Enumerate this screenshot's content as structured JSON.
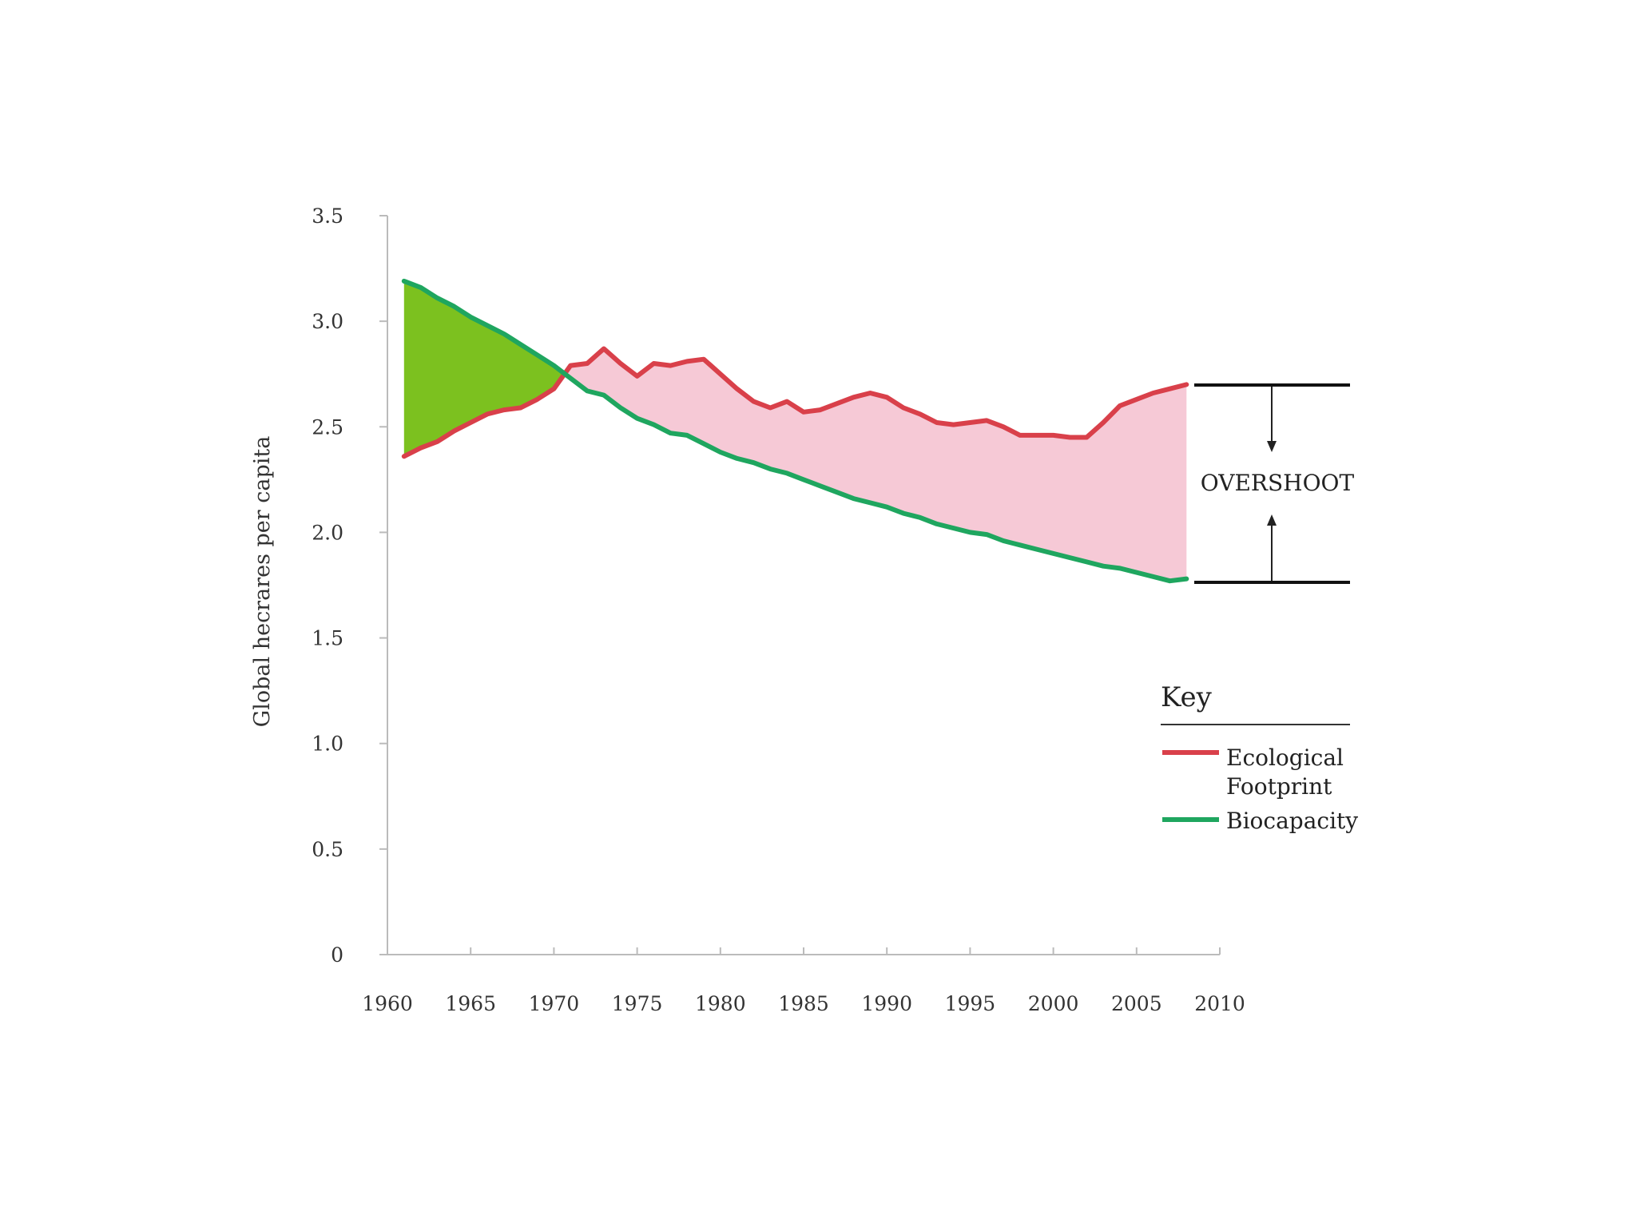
{
  "chart_data": {
    "type": "line",
    "title": "",
    "xlabel": "",
    "ylabel": "Global hecrares per capita",
    "xlim": [
      1960,
      2010
    ],
    "ylim": [
      0,
      3.5
    ],
    "x_ticks": [
      "1960",
      "1965",
      "1970",
      "1975",
      "1980",
      "1985",
      "1990",
      "1995",
      "2000",
      "2005",
      "2010"
    ],
    "y_ticks": [
      "0",
      "0.5",
      "1.0",
      "1.5",
      "2.0",
      "2.5",
      "3.0",
      "3.5"
    ],
    "grid": false,
    "x": [
      1961,
      1962,
      1963,
      1964,
      1965,
      1966,
      1967,
      1968,
      1969,
      1970,
      1971,
      1972,
      1973,
      1974,
      1975,
      1976,
      1977,
      1978,
      1979,
      1980,
      1981,
      1982,
      1983,
      1984,
      1985,
      1986,
      1987,
      1988,
      1989,
      1990,
      1991,
      1992,
      1993,
      1994,
      1995,
      1996,
      1997,
      1998,
      1999,
      2000,
      2001,
      2002,
      2003,
      2004,
      2005,
      2006,
      2007,
      2008
    ],
    "series": [
      {
        "name": "Ecological Footprint",
        "color": "#d9404a",
        "values": [
          2.36,
          2.4,
          2.43,
          2.48,
          2.52,
          2.56,
          2.58,
          2.59,
          2.63,
          2.68,
          2.79,
          2.8,
          2.87,
          2.8,
          2.74,
          2.8,
          2.79,
          2.81,
          2.82,
          2.75,
          2.68,
          2.62,
          2.59,
          2.62,
          2.57,
          2.58,
          2.61,
          2.64,
          2.66,
          2.64,
          2.59,
          2.56,
          2.52,
          2.51,
          2.52,
          2.53,
          2.5,
          2.46,
          2.46,
          2.46,
          2.45,
          2.45,
          2.52,
          2.6,
          2.63,
          2.66,
          2.68,
          2.7
        ]
      },
      {
        "name": "Biocapacity",
        "color": "#1fa65f",
        "values": [
          3.19,
          3.16,
          3.11,
          3.07,
          3.02,
          2.98,
          2.94,
          2.89,
          2.84,
          2.79,
          2.73,
          2.67,
          2.65,
          2.59,
          2.54,
          2.51,
          2.47,
          2.46,
          2.42,
          2.38,
          2.35,
          2.33,
          2.3,
          2.28,
          2.25,
          2.22,
          2.19,
          2.16,
          2.14,
          2.12,
          2.09,
          2.07,
          2.04,
          2.02,
          2.0,
          1.99,
          1.96,
          1.94,
          1.92,
          1.9,
          1.88,
          1.86,
          1.84,
          1.83,
          1.81,
          1.79,
          1.77,
          1.78
        ]
      }
    ],
    "fill_colors": {
      "surplus": "#7cc11f",
      "deficit": "#f6c9d6"
    },
    "annotations": [
      {
        "text": "OVERSHOOT",
        "between": [
          1.78,
          2.7
        ],
        "at_x": 2008
      }
    ],
    "legend": {
      "title": "Key",
      "position": "right",
      "entries": [
        "Ecological Footprint",
        "Biocapacity"
      ]
    }
  },
  "legend_lines": {
    "footprint": [
      "Ecological",
      "Footprint"
    ],
    "biocapacity": [
      "Biocapacity"
    ]
  }
}
